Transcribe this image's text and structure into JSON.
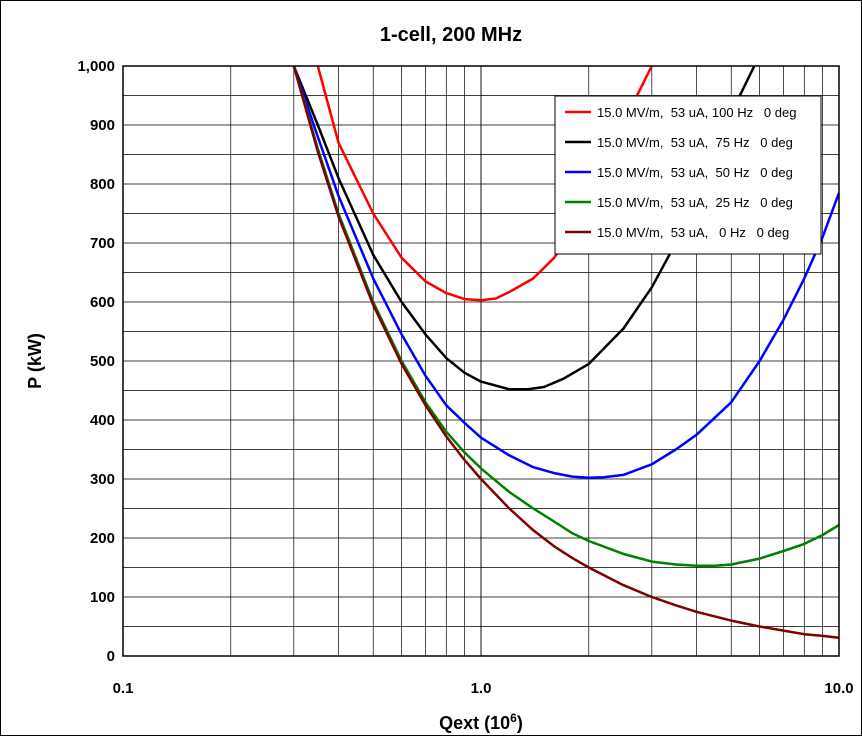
{
  "chart_data": {
    "type": "line",
    "title": "1-cell, 200 MHz",
    "xlabel_base": "Qext (10",
    "xlabel_sup": "6",
    "xlabel_end": ")",
    "ylabel": "P (kW)",
    "xscale": "log",
    "xlim": [
      0.1,
      10.0
    ],
    "ylim": [
      0,
      1000
    ],
    "x_ticks": [
      0.1,
      1.0,
      10.0
    ],
    "x_tick_labels": [
      "0.1",
      "1.0",
      "10.0"
    ],
    "y_ticks": [
      0,
      100,
      200,
      300,
      400,
      500,
      600,
      700,
      800,
      900,
      1000
    ],
    "y_tick_labels": [
      "0",
      "100",
      "200",
      "300",
      "400",
      "500",
      "600",
      "700",
      "800",
      "900",
      "1,000"
    ],
    "y_minor_step": 50,
    "grid": true,
    "legend_position": "top-right",
    "series": [
      {
        "name": "15.0 MV/m,  53 uA, 100 Hz   0 deg",
        "color": "#ff0000",
        "x": [
          0.35,
          0.4,
          0.5,
          0.6,
          0.7,
          0.8,
          0.9,
          1.0,
          1.1,
          1.2,
          1.4,
          1.6,
          1.8,
          2.0,
          2.3,
          2.6,
          3.0
        ],
        "y": [
          1000,
          870,
          750,
          675,
          635,
          615,
          605,
          603,
          606,
          617,
          640,
          675,
          720,
          770,
          850,
          925,
          1000
        ]
      },
      {
        "name": "15.0 MV/m,  53 uA,  75 Hz   0 deg",
        "color": "#000000",
        "x": [
          0.3,
          0.35,
          0.4,
          0.5,
          0.6,
          0.7,
          0.8,
          0.9,
          1.0,
          1.2,
          1.35,
          1.5,
          1.7,
          2.0,
          2.5,
          3.0,
          3.5,
          4.0,
          5.0,
          5.8
        ],
        "y": [
          1000,
          900,
          810,
          680,
          600,
          545,
          505,
          480,
          465,
          452,
          452,
          456,
          470,
          495,
          555,
          625,
          700,
          770,
          920,
          1000
        ]
      },
      {
        "name": "15.0 MV/m,  53 uA,  50 Hz   0 deg",
        "color": "#0000ff",
        "x": [
          0.3,
          0.35,
          0.4,
          0.5,
          0.6,
          0.7,
          0.8,
          0.9,
          1.0,
          1.2,
          1.4,
          1.6,
          1.8,
          2.0,
          2.2,
          2.5,
          3.0,
          3.5,
          4.0,
          5.0,
          6.0,
          7.0,
          8.0,
          9.0,
          10.0
        ],
        "y": [
          1000,
          880,
          780,
          640,
          545,
          475,
          425,
          395,
          370,
          340,
          320,
          310,
          304,
          302,
          303,
          307,
          325,
          350,
          375,
          430,
          500,
          570,
          640,
          710,
          785
        ]
      },
      {
        "name": "15.0 MV/m,  53 uA,  25 Hz   0 deg",
        "color": "#008000",
        "x": [
          0.3,
          0.35,
          0.4,
          0.5,
          0.6,
          0.7,
          0.8,
          0.9,
          1.0,
          1.2,
          1.4,
          1.6,
          1.8,
          2.0,
          2.5,
          3.0,
          3.5,
          4.0,
          4.5,
          5.0,
          6.0,
          7.0,
          8.0,
          9.0,
          10.0
        ],
        "y": [
          1000,
          860,
          750,
          600,
          500,
          430,
          380,
          345,
          318,
          278,
          250,
          228,
          208,
          195,
          173,
          160,
          155,
          153,
          153,
          155,
          165,
          178,
          190,
          205,
          222
        ]
      },
      {
        "name": "15.0 MV/m,  53 uA,   0 Hz   0 deg",
        "color": "#800000",
        "x": [
          0.3,
          0.35,
          0.4,
          0.5,
          0.6,
          0.7,
          0.8,
          0.9,
          1.0,
          1.2,
          1.4,
          1.6,
          1.8,
          2.0,
          2.5,
          3.0,
          3.5,
          4.0,
          5.0,
          6.0,
          7.0,
          8.0,
          9.0,
          10.0
        ],
        "y": [
          1000,
          855,
          745,
          595,
          495,
          425,
          372,
          332,
          300,
          250,
          213,
          186,
          166,
          150,
          120,
          100,
          86,
          75,
          60,
          50,
          43,
          37,
          34,
          31
        ]
      }
    ]
  }
}
